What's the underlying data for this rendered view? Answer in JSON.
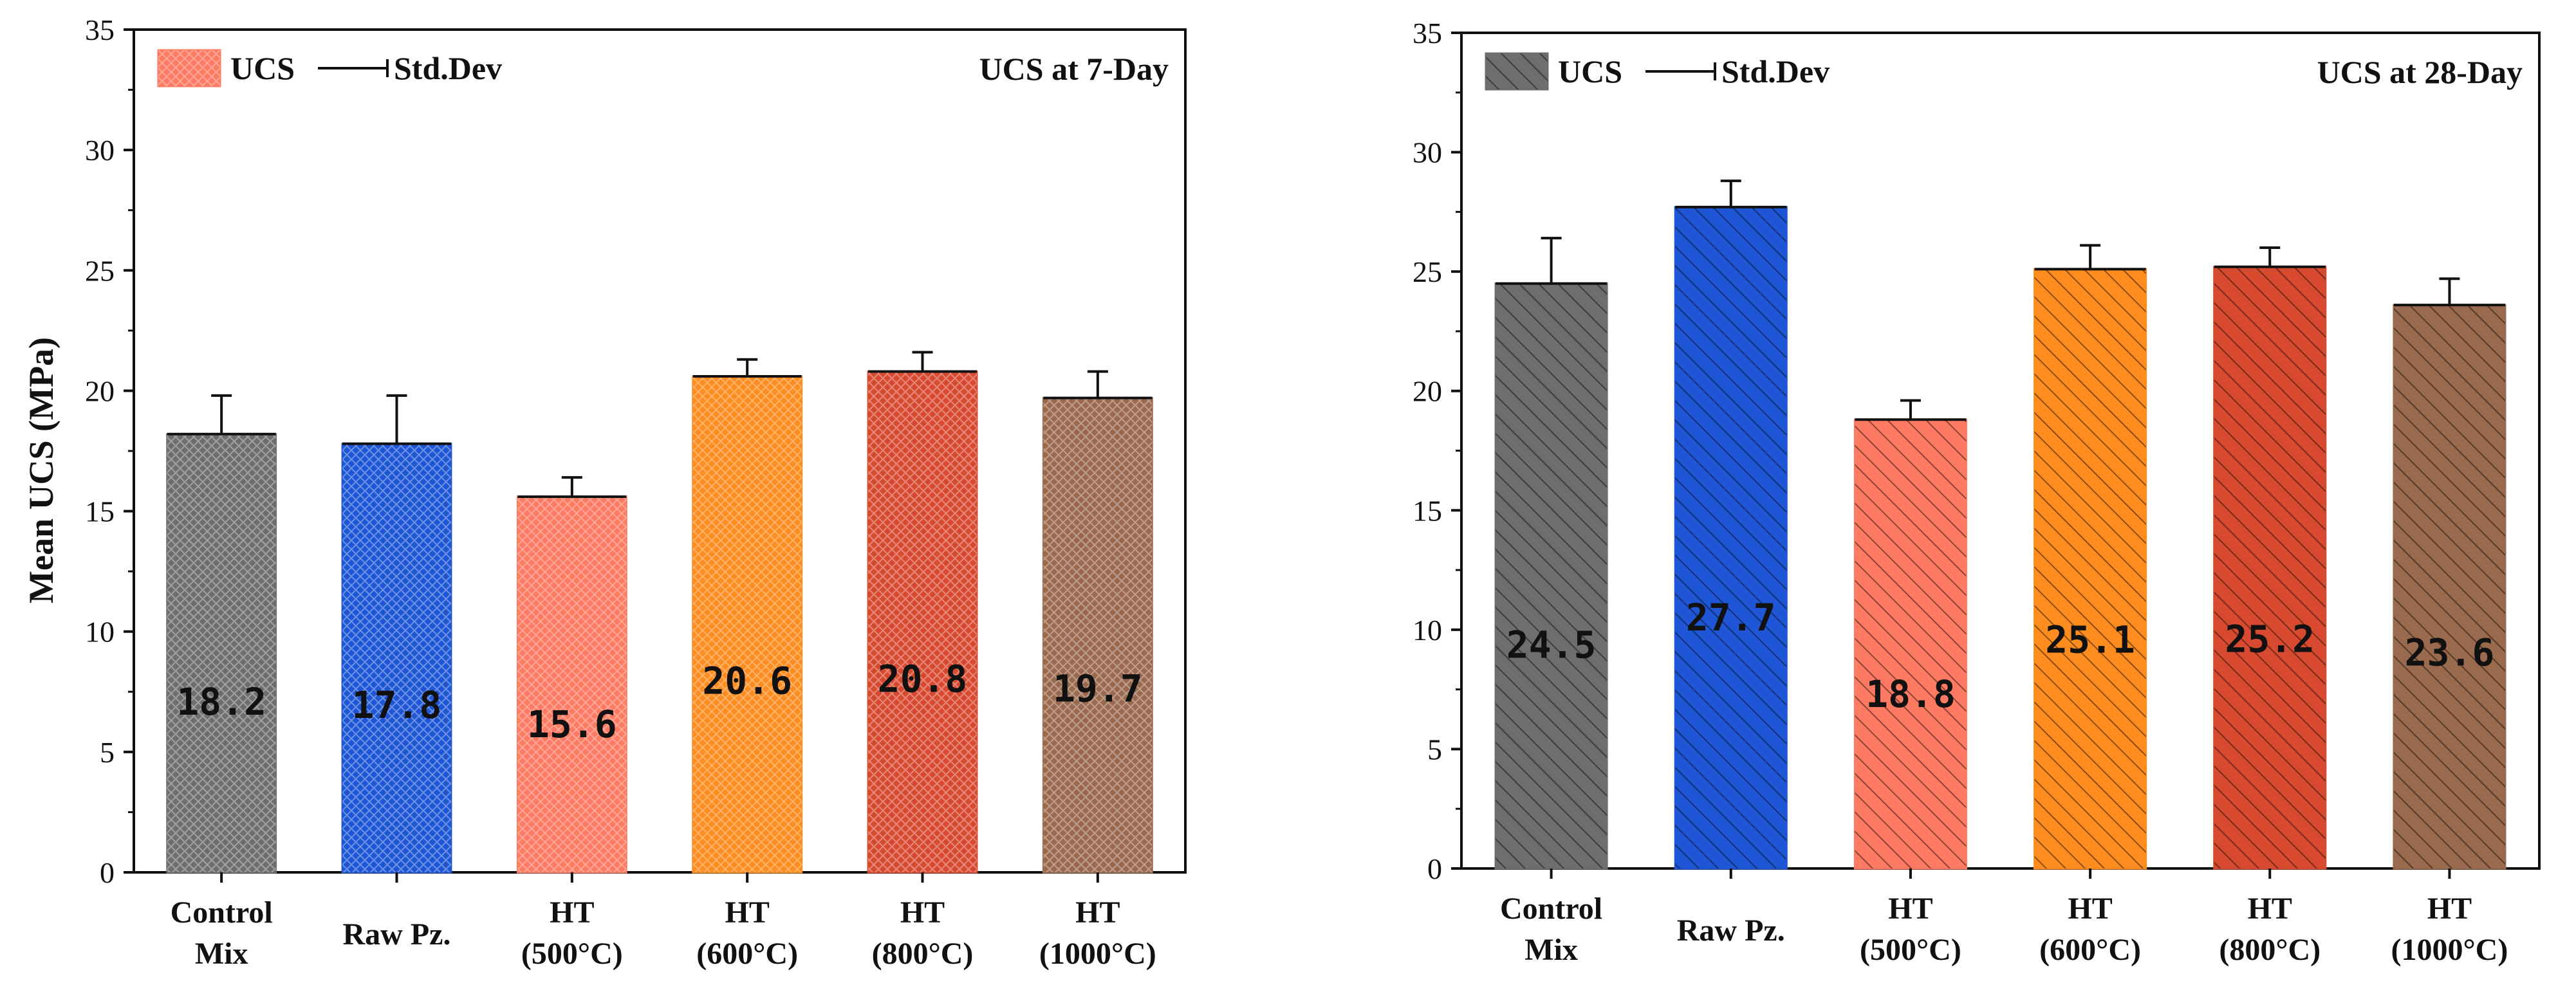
{
  "colors": {
    "control": "#6e6e6e",
    "raw": "#1f56d6",
    "ht500": "#ff7a62",
    "ht600": "#ff8c1e",
    "ht800": "#d84a30",
    "ht1000": "#9a6a4e"
  },
  "chart_data": [
    {
      "type": "bar",
      "title": "UCS at 7-Day",
      "ylabel": "Mean UCS (MPa)",
      "xlabel": "",
      "ylim": [
        0,
        35
      ],
      "yticks": [
        0,
        5,
        10,
        15,
        20,
        25,
        30,
        35
      ],
      "categories": [
        [
          "Control",
          "Mix"
        ],
        [
          "Raw Pz."
        ],
        [
          "HT",
          "(500°C)"
        ],
        [
          "HT",
          "(600°C)"
        ],
        [
          "HT",
          "(800°C)"
        ],
        [
          "HT",
          "(1000°C)"
        ]
      ],
      "values": [
        18.2,
        17.8,
        15.6,
        20.6,
        20.8,
        19.7
      ],
      "value_labels": [
        "18.2",
        "17.8",
        "15.6",
        "20.6",
        "20.8",
        "19.7"
      ],
      "std_dev": [
        1.6,
        2.0,
        0.8,
        0.7,
        0.8,
        1.1
      ],
      "legend": {
        "bar": "UCS",
        "line": "Std.Dev",
        "placement": "top-left"
      },
      "fill_style": "crosshatch"
    },
    {
      "type": "bar",
      "title": "UCS at 28-Day",
      "ylabel": "",
      "xlabel": "",
      "ylim": [
        0,
        35
      ],
      "yticks": [
        0,
        5,
        10,
        15,
        20,
        25,
        30,
        35
      ],
      "categories": [
        [
          "Control",
          "Mix"
        ],
        [
          "Raw Pz."
        ],
        [
          "HT",
          "(500°C)"
        ],
        [
          "HT",
          "(600°C)"
        ],
        [
          "HT",
          "(800°C)"
        ],
        [
          "HT",
          "(1000°C)"
        ]
      ],
      "values": [
        24.5,
        27.7,
        18.8,
        25.1,
        25.2,
        23.6
      ],
      "value_labels": [
        "24.5",
        "27.7",
        "18.8",
        "25.1",
        "25.2",
        "23.6"
      ],
      "std_dev": [
        1.9,
        1.1,
        0.8,
        1.0,
        0.8,
        1.1
      ],
      "legend": {
        "bar": "UCS",
        "line": "Std.Dev",
        "placement": "top-left"
      },
      "fill_style": "diagonal"
    }
  ]
}
